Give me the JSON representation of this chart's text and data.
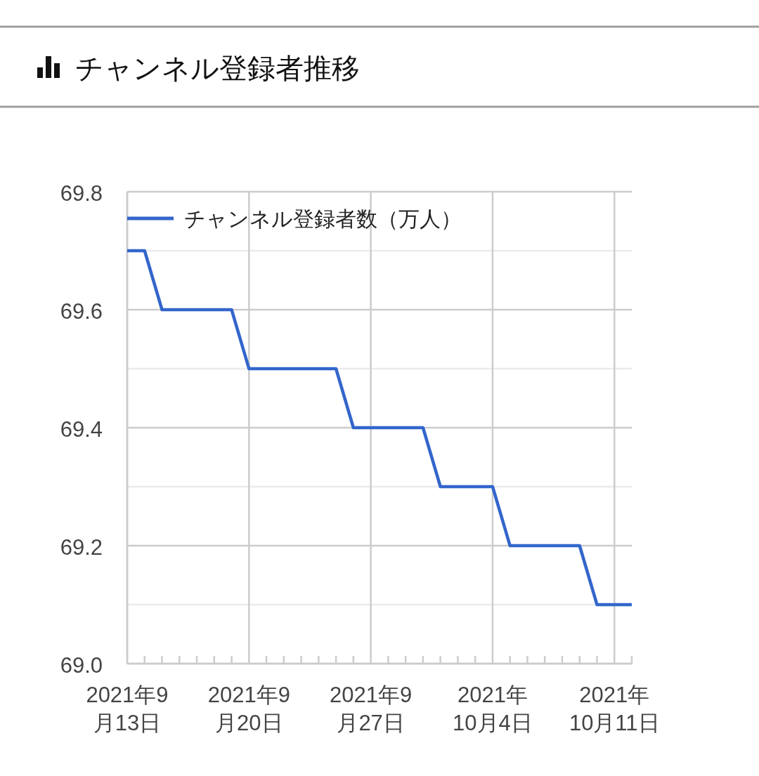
{
  "chart_data": {
    "type": "line",
    "title": "チャンネル登録者推移",
    "x": [
      "2021-09-13",
      "2021-09-14",
      "2021-09-15",
      "2021-09-16",
      "2021-09-17",
      "2021-09-18",
      "2021-09-19",
      "2021-09-20",
      "2021-09-21",
      "2021-09-22",
      "2021-09-23",
      "2021-09-24",
      "2021-09-25",
      "2021-09-26",
      "2021-09-27",
      "2021-09-28",
      "2021-09-29",
      "2021-09-30",
      "2021-10-01",
      "2021-10-02",
      "2021-10-03",
      "2021-10-04",
      "2021-10-05",
      "2021-10-06",
      "2021-10-07",
      "2021-10-08",
      "2021-10-09",
      "2021-10-10",
      "2021-10-11",
      "2021-10-12"
    ],
    "series": [
      {
        "name": "チャンネル登録者数（万人）",
        "color": "#3366cc",
        "values": [
          69.7,
          69.7,
          69.6,
          69.6,
          69.6,
          69.6,
          69.6,
          69.5,
          69.5,
          69.5,
          69.5,
          69.5,
          69.5,
          69.4,
          69.4,
          69.4,
          69.4,
          69.4,
          69.3,
          69.3,
          69.3,
          69.3,
          69.2,
          69.2,
          69.2,
          69.2,
          69.2,
          69.1,
          69.1,
          69.1
        ]
      }
    ],
    "xlim": [
      "2021-09-13",
      "2021-10-12"
    ],
    "xticks": [
      {
        "value": "2021-09-13",
        "label": "2021年9月13日"
      },
      {
        "value": "2021-09-14",
        "label": null
      },
      {
        "value": "2021-09-15",
        "label": null
      },
      {
        "value": "2021-09-16",
        "label": null
      },
      {
        "value": "2021-09-17",
        "label": null
      },
      {
        "value": "2021-09-18",
        "label": null
      },
      {
        "value": "2021-09-19",
        "label": null
      },
      {
        "value": "2021-09-20",
        "label": "2021年9月20日"
      },
      {
        "value": "2021-09-21",
        "label": null
      },
      {
        "value": "2021-09-22",
        "label": null
      },
      {
        "value": "2021-09-23",
        "label": null
      },
      {
        "value": "2021-09-24",
        "label": null
      },
      {
        "value": "2021-09-25",
        "label": null
      },
      {
        "value": "2021-09-26",
        "label": null
      },
      {
        "value": "2021-09-27",
        "label": "2021年9月27日"
      },
      {
        "value": "2021-09-28",
        "label": null
      },
      {
        "value": "2021-09-29",
        "label": null
      },
      {
        "value": "2021-09-30",
        "label": null
      },
      {
        "value": "2021-10-01",
        "label": null
      },
      {
        "value": "2021-10-02",
        "label": null
      },
      {
        "value": "2021-10-03",
        "label": null
      },
      {
        "value": "2021-10-04",
        "label": "2021年10月4日"
      },
      {
        "value": "2021-10-05",
        "label": null
      },
      {
        "value": "2021-10-06",
        "label": null
      },
      {
        "value": "2021-10-07",
        "label": null
      },
      {
        "value": "2021-10-08",
        "label": null
      },
      {
        "value": "2021-10-09",
        "label": null
      },
      {
        "value": "2021-10-10",
        "label": null
      },
      {
        "value": "2021-10-11",
        "label": "2021年10月11日"
      },
      {
        "value": "2021-10-12",
        "label": null
      }
    ],
    "ylim": [
      69.0,
      69.8
    ],
    "yticks": [
      {
        "value": 69.0,
        "label": "69.0"
      },
      {
        "value": 69.1,
        "label": null
      },
      69.2,
      {
        "value": 69.3,
        "label": null
      },
      69.4,
      {
        "value": 69.5,
        "label": null
      },
      69.6,
      {
        "value": 69.7,
        "label": null
      },
      69.8
    ],
    "grid": true,
    "legend": "top left",
    "line_style": "solid"
  }
}
